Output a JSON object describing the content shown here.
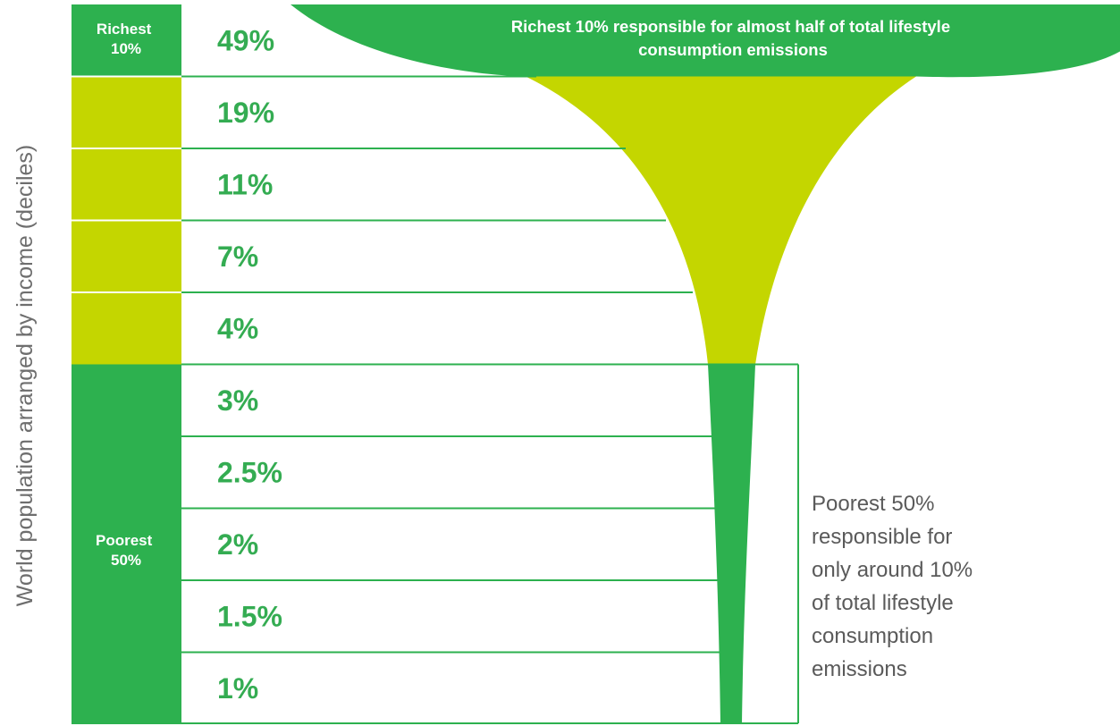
{
  "colors": {
    "dark_green": "#2db14f",
    "light_green": "#c4d600",
    "label_green": "#34ac52"
  },
  "chart_data": {
    "type": "bar",
    "ylabel": "World population arranged by income (deciles)",
    "categories": [
      "Richest 10%",
      "",
      "",
      "",
      "",
      "",
      "",
      "",
      "",
      ""
    ],
    "values": [
      49,
      19,
      11,
      7,
      4,
      3,
      2.5,
      2,
      1.5,
      1
    ],
    "value_labels": [
      "49%",
      "19%",
      "11%",
      "7%",
      "4%",
      "3%",
      "2.5%",
      "2%",
      "1.5%",
      "1%"
    ],
    "groups": [
      {
        "label": [
          "Richest",
          "10%"
        ],
        "deciles": [
          1
        ]
      },
      {
        "label": [
          "Poorest",
          "50%"
        ],
        "deciles": [
          6,
          7,
          8,
          9,
          10
        ]
      }
    ],
    "annotations": {
      "top": [
        "Richest 10% responsible for almost half of total lifestyle",
        "consumption emissions"
      ],
      "bottom": [
        "Poorest 50%",
        "responsible for",
        "only around 10%",
        "of total lifestyle",
        "consumption",
        "emissions"
      ]
    }
  }
}
